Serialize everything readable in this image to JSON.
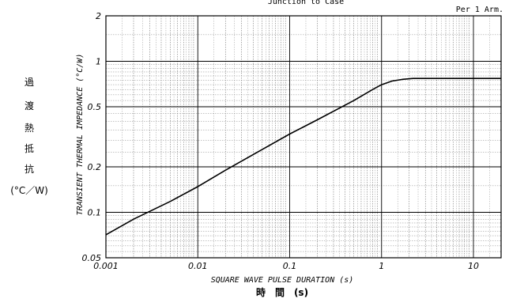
{
  "chart_data": {
    "type": "line",
    "title": "Junction to Case",
    "annotation": "Per 1 Arm.",
    "xlabel": "SQUARE WAVE PULSE DURATION (s)",
    "xlabel_jp": "時　間　(s)",
    "ylabel": "TRANSIENT THERMAL IMPEDANCE (°C/W)",
    "ylabel_jp": [
      "過",
      "渡",
      "熱",
      "抵",
      "抗"
    ],
    "ylabel_jp_unit": "(°C／W)",
    "x_scale": "log",
    "y_scale": "log",
    "xlim": [
      0.001,
      20
    ],
    "ylim": [
      0.05,
      2
    ],
    "x_ticks": [
      {
        "value": 0.001,
        "label": "0.001"
      },
      {
        "value": 0.01,
        "label": "0.01"
      },
      {
        "value": 0.1,
        "label": "0.1"
      },
      {
        "value": 1,
        "label": "1"
      },
      {
        "value": 10,
        "label": "10"
      }
    ],
    "y_ticks": [
      {
        "value": 0.05,
        "label": "0.05"
      },
      {
        "value": 0.1,
        "label": "0.1"
      },
      {
        "value": 0.2,
        "label": "0.2"
      },
      {
        "value": 0.5,
        "label": "0.5"
      },
      {
        "value": 1,
        "label": "1"
      },
      {
        "value": 2,
        "label": "2"
      }
    ],
    "grid": true,
    "series": [
      {
        "x": [
          0.001,
          0.002,
          0.005,
          0.01,
          0.02,
          0.05,
          0.1,
          0.2,
          0.5,
          0.8,
          1.0,
          1.3,
          1.7,
          2.2,
          3,
          5,
          10,
          20
        ],
        "y": [
          0.071,
          0.09,
          0.118,
          0.148,
          0.19,
          0.26,
          0.33,
          0.41,
          0.55,
          0.65,
          0.7,
          0.74,
          0.76,
          0.77,
          0.77,
          0.77,
          0.77,
          0.77
        ]
      }
    ]
  }
}
